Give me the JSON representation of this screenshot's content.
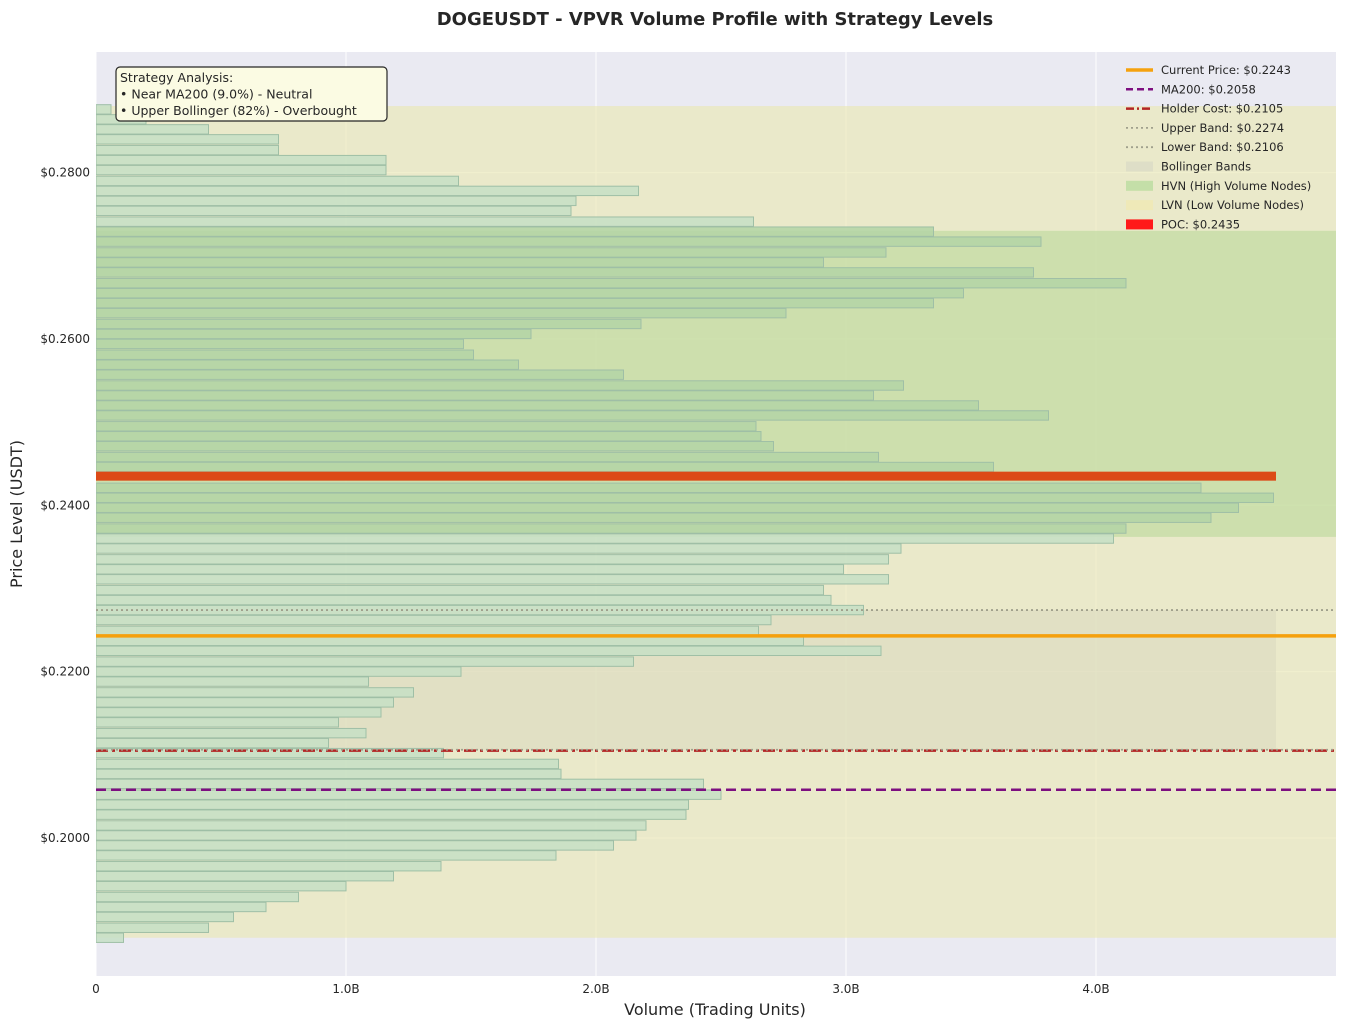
{
  "chart_data": {
    "type": "bar",
    "orientation": "horizontal",
    "title": "DOGEUSDT - VPVR Volume Profile with Strategy Levels",
    "xlabel": "Volume (Trading Units)",
    "ylabel": "Price Level (USDT)",
    "xlim": [
      0,
      4.96
    ],
    "ylim": [
      0.1834,
      0.2945
    ],
    "x_unit": "B",
    "x_ticks": [
      0,
      1,
      2,
      3,
      4
    ],
    "x_tick_labels": [
      "0",
      "1.0B",
      "2.0B",
      "3.0B",
      "4.0B"
    ],
    "y_ticks": [
      0.2,
      0.22,
      0.24,
      0.26,
      0.28
    ],
    "y_tick_labels": [
      "$0.2000",
      "$0.2200",
      "$0.2400",
      "$0.2600",
      "$0.2800"
    ],
    "grid": true,
    "legend_position": "top-right",
    "bins": [
      {
        "price": 0.188,
        "volume": 0.11
      },
      {
        "price": 0.1892,
        "volume": 0.45
      },
      {
        "price": 0.1905,
        "volume": 0.55
      },
      {
        "price": 0.1917,
        "volume": 0.68
      },
      {
        "price": 0.1929,
        "volume": 0.81
      },
      {
        "price": 0.1942,
        "volume": 1.0
      },
      {
        "price": 0.1954,
        "volume": 1.19
      },
      {
        "price": 0.1966,
        "volume": 1.38
      },
      {
        "price": 0.1979,
        "volume": 1.84
      },
      {
        "price": 0.1991,
        "volume": 2.07
      },
      {
        "price": 0.2003,
        "volume": 2.16
      },
      {
        "price": 0.2015,
        "volume": 2.2
      },
      {
        "price": 0.2028,
        "volume": 2.36
      },
      {
        "price": 0.204,
        "volume": 2.37
      },
      {
        "price": 0.2052,
        "volume": 2.5
      },
      {
        "price": 0.2065,
        "volume": 2.43
      },
      {
        "price": 0.2077,
        "volume": 1.86
      },
      {
        "price": 0.2089,
        "volume": 1.85
      },
      {
        "price": 0.2102,
        "volume": 1.39
      },
      {
        "price": 0.2114,
        "volume": 0.93
      },
      {
        "price": 0.2126,
        "volume": 1.08
      },
      {
        "price": 0.2139,
        "volume": 0.97
      },
      {
        "price": 0.2151,
        "volume": 1.14
      },
      {
        "price": 0.2163,
        "volume": 1.19
      },
      {
        "price": 0.2175,
        "volume": 1.27
      },
      {
        "price": 0.2188,
        "volume": 1.09
      },
      {
        "price": 0.22,
        "volume": 1.46
      },
      {
        "price": 0.2212,
        "volume": 2.15
      },
      {
        "price": 0.2225,
        "volume": 3.14
      },
      {
        "price": 0.2237,
        "volume": 2.83
      },
      {
        "price": 0.2249,
        "volume": 2.65
      },
      {
        "price": 0.2262,
        "volume": 2.7
      },
      {
        "price": 0.2274,
        "volume": 3.07
      },
      {
        "price": 0.2286,
        "volume": 2.94
      },
      {
        "price": 0.2298,
        "volume": 2.91
      },
      {
        "price": 0.2311,
        "volume": 3.17
      },
      {
        "price": 0.2323,
        "volume": 2.99
      },
      {
        "price": 0.2335,
        "volume": 3.17
      },
      {
        "price": 0.2348,
        "volume": 3.22
      },
      {
        "price": 0.236,
        "volume": 4.07
      },
      {
        "price": 0.2372,
        "volume": 4.12
      },
      {
        "price": 0.2385,
        "volume": 4.46
      },
      {
        "price": 0.2397,
        "volume": 4.57
      },
      {
        "price": 0.2409,
        "volume": 4.71
      },
      {
        "price": 0.2421,
        "volume": 4.42
      },
      {
        "price": 0.2446,
        "volume": 3.59
      },
      {
        "price": 0.2458,
        "volume": 3.13
      },
      {
        "price": 0.2471,
        "volume": 2.71
      },
      {
        "price": 0.2483,
        "volume": 2.66
      },
      {
        "price": 0.2495,
        "volume": 2.64
      },
      {
        "price": 0.2508,
        "volume": 3.81
      },
      {
        "price": 0.252,
        "volume": 3.53
      },
      {
        "price": 0.2532,
        "volume": 3.11
      },
      {
        "price": 0.2544,
        "volume": 3.23
      },
      {
        "price": 0.2557,
        "volume": 2.11
      },
      {
        "price": 0.2569,
        "volume": 1.69
      },
      {
        "price": 0.2581,
        "volume": 1.51
      },
      {
        "price": 0.2594,
        "volume": 1.47
      },
      {
        "price": 0.2606,
        "volume": 1.74
      },
      {
        "price": 0.2618,
        "volume": 2.18
      },
      {
        "price": 0.2631,
        "volume": 2.76
      },
      {
        "price": 0.2643,
        "volume": 3.35
      },
      {
        "price": 0.2655,
        "volume": 3.47
      },
      {
        "price": 0.2667,
        "volume": 4.12
      },
      {
        "price": 0.268,
        "volume": 3.75
      },
      {
        "price": 0.2692,
        "volume": 2.91
      },
      {
        "price": 0.2704,
        "volume": 3.16
      },
      {
        "price": 0.2717,
        "volume": 3.78
      },
      {
        "price": 0.2729,
        "volume": 3.35
      },
      {
        "price": 0.2741,
        "volume": 2.63
      },
      {
        "price": 0.2754,
        "volume": 1.9
      },
      {
        "price": 0.2766,
        "volume": 1.92
      },
      {
        "price": 0.2778,
        "volume": 2.17
      },
      {
        "price": 0.279,
        "volume": 1.45
      },
      {
        "price": 0.2803,
        "volume": 1.16
      },
      {
        "price": 0.2815,
        "volume": 1.16
      },
      {
        "price": 0.2827,
        "volume": 0.73
      },
      {
        "price": 0.284,
        "volume": 0.73
      },
      {
        "price": 0.2852,
        "volume": 0.45
      },
      {
        "price": 0.2864,
        "volume": 0.2
      },
      {
        "price": 0.2876,
        "volume": 0.06
      }
    ],
    "bin_height": 0.00113,
    "zones": [
      {
        "name": "LVN (Low Volume Nodes)",
        "y_from": 0.188,
        "y_to": 0.288,
        "color": "#eae8b4",
        "opacity": 0.65
      },
      {
        "name": "HVN (High Volume Nodes)",
        "y_from": 0.2362,
        "y_to": 0.273,
        "color": "#b9d89a",
        "opacity": 0.6
      },
      {
        "name": "Bollinger Bands",
        "y_from": 0.2106,
        "y_to": 0.2274,
        "x_to": 4.72,
        "color": "#d8d8bf",
        "opacity": 0.55
      }
    ],
    "levels": [
      {
        "name": "Current Price: $0.2243",
        "value": 0.2243,
        "color": "#f5a10e",
        "style": "solid",
        "width": 3.5
      },
      {
        "name": "MA200: $0.2058",
        "value": 0.2058,
        "color": "#7d0f80",
        "style": "dashed",
        "width": 2.5
      },
      {
        "name": "Holder Cost: $0.2105",
        "value": 0.2105,
        "color": "#b32424",
        "style": "dashdot",
        "width": 2.5
      },
      {
        "name": "Upper Band: $0.2274",
        "value": 0.2274,
        "color": "#a0a08c",
        "style": "dotted",
        "width": 1.8
      },
      {
        "name": "Lower Band: $0.2106",
        "value": 0.2106,
        "color": "#a0a08c",
        "style": "dotted",
        "width": 1.8
      }
    ],
    "poc": {
      "name": "POC: $0.2435",
      "value": 0.2435,
      "volume": 4.72,
      "color": "#dc4a17",
      "legend_color": "#ff1a1a"
    },
    "colors": {
      "background": "#eaeaf2",
      "bar_fill": "#c6dfc6",
      "bar_edge": "#9fbfa6",
      "bar_fill_hvn": "#b3d5a6"
    },
    "annotation": {
      "lines": [
        "Strategy Analysis:",
        "• Near MA200 (9.0%) - Neutral",
        "• Upper Bollinger (82%) - Overbought"
      ],
      "position": "top-left"
    },
    "legend": [
      {
        "label": "Current Price: $0.2243",
        "kind": "line",
        "color": "#f5a10e",
        "style": "solid"
      },
      {
        "label": "MA200: $0.2058",
        "kind": "line",
        "color": "#7d0f80",
        "style": "dashed"
      },
      {
        "label": "Holder Cost: $0.2105",
        "kind": "line",
        "color": "#b32424",
        "style": "dashdot"
      },
      {
        "label": "Upper Band: $0.2274",
        "kind": "line",
        "color": "#a0a08c",
        "style": "dotted"
      },
      {
        "label": "Lower Band: $0.2106",
        "kind": "line",
        "color": "#a0a08c",
        "style": "dotted"
      },
      {
        "label": "Bollinger Bands",
        "kind": "patch",
        "color": "#dedec7"
      },
      {
        "label": "HVN (High Volume Nodes)",
        "kind": "patch",
        "color": "#c4dfa8"
      },
      {
        "label": "LVN (Low Volume Nodes)",
        "kind": "patch",
        "color": "#efe9b8"
      },
      {
        "label": "POC: $0.2435",
        "kind": "patch",
        "color": "#ff1a1a"
      }
    ]
  }
}
